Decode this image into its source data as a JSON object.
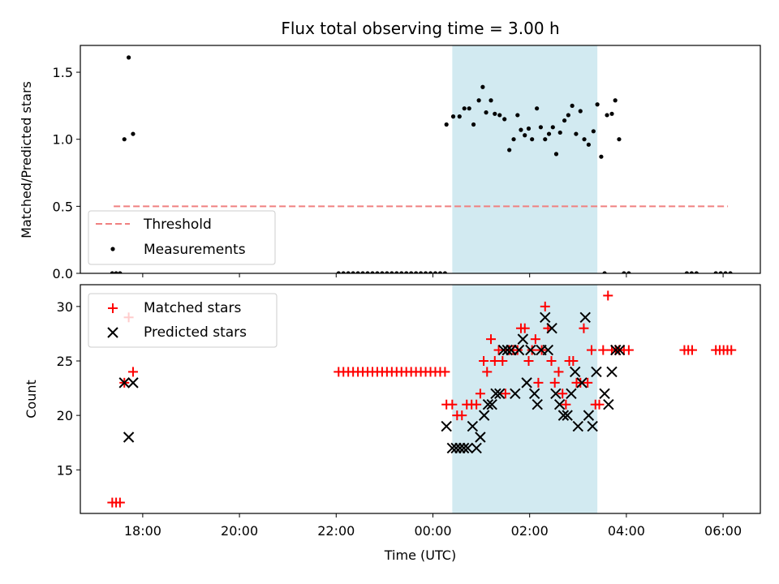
{
  "chart_data": {
    "title": "Flux total observing time = 3.00 h",
    "xlabel": "Time (UTC)",
    "x_ticks": [
      {
        "label": "18:00",
        "h": 18
      },
      {
        "label": "20:00",
        "h": 20
      },
      {
        "label": "22:00",
        "h": 22
      },
      {
        "label": "00:00",
        "h": 24
      },
      {
        "label": "02:00",
        "h": 26
      },
      {
        "label": "04:00",
        "h": 28
      },
      {
        "label": "06:00",
        "h": 30
      }
    ],
    "xlim_hours": [
      16.71,
      30.77
    ],
    "shaded_span_hours": [
      24.4,
      27.4
    ],
    "colors": {
      "shade": "#add8e6",
      "threshold": "#f08080",
      "matched": "#ff0000",
      "predicted": "#000000",
      "measure": "#000000"
    },
    "top": {
      "type": "scatter",
      "ylabel": "Matched/Predicted stars",
      "ylim": [
        0,
        1.7
      ],
      "yticks": [
        0.0,
        0.5,
        1.0,
        1.5
      ],
      "ytick_labels": [
        "0.0",
        "0.5",
        "1.0",
        "1.5"
      ],
      "threshold": {
        "value": 0.5,
        "x_range": [
          17.4,
          30.1
        ]
      },
      "legend": [
        "Threshold",
        "Measurements"
      ],
      "measurements": [
        [
          17.37,
          0
        ],
        [
          17.45,
          0
        ],
        [
          17.53,
          0
        ],
        [
          17.62,
          1.0
        ],
        [
          17.71,
          1.61
        ],
        [
          17.8,
          1.04
        ],
        [
          22.05,
          0
        ],
        [
          22.15,
          0
        ],
        [
          22.25,
          0
        ],
        [
          22.35,
          0
        ],
        [
          22.45,
          0
        ],
        [
          22.55,
          0
        ],
        [
          22.65,
          0
        ],
        [
          22.75,
          0
        ],
        [
          22.85,
          0
        ],
        [
          22.95,
          0
        ],
        [
          23.05,
          0
        ],
        [
          23.15,
          0
        ],
        [
          23.25,
          0
        ],
        [
          23.35,
          0
        ],
        [
          23.45,
          0
        ],
        [
          23.55,
          0
        ],
        [
          23.65,
          0
        ],
        [
          23.75,
          0
        ],
        [
          23.85,
          0
        ],
        [
          23.95,
          0
        ],
        [
          24.05,
          0
        ],
        [
          24.15,
          0
        ],
        [
          24.25,
          0
        ],
        [
          24.28,
          1.11
        ],
        [
          24.42,
          1.17
        ],
        [
          24.55,
          1.17
        ],
        [
          24.65,
          1.23
        ],
        [
          24.75,
          1.23
        ],
        [
          24.84,
          1.11
        ],
        [
          24.95,
          1.29
        ],
        [
          25.03,
          1.39
        ],
        [
          25.1,
          1.2
        ],
        [
          25.2,
          1.29
        ],
        [
          25.28,
          1.19
        ],
        [
          25.38,
          1.18
        ],
        [
          25.48,
          1.15
        ],
        [
          25.58,
          0.92
        ],
        [
          25.67,
          1.0
        ],
        [
          25.75,
          1.18
        ],
        [
          25.82,
          1.07
        ],
        [
          25.9,
          1.03
        ],
        [
          25.98,
          1.08
        ],
        [
          26.05,
          1.0
        ],
        [
          26.15,
          1.23
        ],
        [
          26.23,
          1.09
        ],
        [
          26.32,
          1.0
        ],
        [
          26.4,
          1.04
        ],
        [
          26.48,
          1.09
        ],
        [
          26.55,
          0.89
        ],
        [
          26.63,
          1.05
        ],
        [
          26.72,
          1.14
        ],
        [
          26.8,
          1.18
        ],
        [
          26.88,
          1.25
        ],
        [
          26.96,
          1.04
        ],
        [
          27.05,
          1.21
        ],
        [
          27.13,
          1.0
        ],
        [
          27.22,
          0.96
        ],
        [
          27.32,
          1.06
        ],
        [
          27.4,
          1.26
        ],
        [
          27.48,
          0.87
        ],
        [
          27.6,
          1.18
        ],
        [
          27.7,
          1.19
        ],
        [
          27.77,
          1.29
        ],
        [
          27.85,
          1.0
        ],
        [
          27.55,
          0
        ],
        [
          27.95,
          0
        ],
        [
          28.05,
          0
        ],
        [
          29.25,
          0
        ],
        [
          29.35,
          0
        ],
        [
          29.45,
          0
        ],
        [
          29.85,
          0
        ],
        [
          29.95,
          0
        ],
        [
          30.05,
          0
        ],
        [
          30.15,
          0
        ]
      ]
    },
    "bottom": {
      "type": "scatter",
      "ylabel": "Count",
      "ylim": [
        11.0,
        32.0
      ],
      "yticks": [
        15,
        20,
        25,
        30
      ],
      "ytick_labels": [
        "15",
        "20",
        "25",
        "30"
      ],
      "legend": [
        "Matched stars",
        "Predicted stars"
      ],
      "matched": [
        [
          17.37,
          12
        ],
        [
          17.45,
          12
        ],
        [
          17.53,
          12
        ],
        [
          17.62,
          23
        ],
        [
          17.71,
          29
        ],
        [
          17.8,
          24
        ],
        [
          22.05,
          24
        ],
        [
          22.15,
          24
        ],
        [
          22.25,
          24
        ],
        [
          22.35,
          24
        ],
        [
          22.45,
          24
        ],
        [
          22.55,
          24
        ],
        [
          22.65,
          24
        ],
        [
          22.75,
          24
        ],
        [
          22.85,
          24
        ],
        [
          22.95,
          24
        ],
        [
          23.05,
          24
        ],
        [
          23.15,
          24
        ],
        [
          23.25,
          24
        ],
        [
          23.35,
          24
        ],
        [
          23.45,
          24
        ],
        [
          23.55,
          24
        ],
        [
          23.65,
          24
        ],
        [
          23.75,
          24
        ],
        [
          23.85,
          24
        ],
        [
          23.95,
          24
        ],
        [
          24.05,
          24
        ],
        [
          24.15,
          24
        ],
        [
          24.25,
          24
        ],
        [
          24.28,
          21
        ],
        [
          24.4,
          21
        ],
        [
          24.5,
          20
        ],
        [
          24.6,
          20
        ],
        [
          24.7,
          21
        ],
        [
          24.8,
          21
        ],
        [
          24.9,
          21
        ],
        [
          24.98,
          22
        ],
        [
          25.05,
          25
        ],
        [
          25.12,
          24
        ],
        [
          25.2,
          27
        ],
        [
          25.28,
          25
        ],
        [
          25.36,
          26
        ],
        [
          25.44,
          25
        ],
        [
          25.5,
          22
        ],
        [
          25.58,
          26
        ],
        [
          25.66,
          26
        ],
        [
          25.75,
          26
        ],
        [
          25.82,
          28
        ],
        [
          25.9,
          28
        ],
        [
          25.98,
          25
        ],
        [
          26.05,
          26
        ],
        [
          26.12,
          27
        ],
        [
          26.18,
          23
        ],
        [
          26.25,
          26
        ],
        [
          26.32,
          30
        ],
        [
          26.38,
          28
        ],
        [
          26.45,
          25
        ],
        [
          26.52,
          23
        ],
        [
          26.6,
          24
        ],
        [
          26.68,
          22
        ],
        [
          26.75,
          21
        ],
        [
          26.82,
          25
        ],
        [
          26.9,
          25
        ],
        [
          26.97,
          23
        ],
        [
          27.05,
          23
        ],
        [
          27.12,
          28
        ],
        [
          27.2,
          23
        ],
        [
          27.28,
          26
        ],
        [
          27.36,
          21
        ],
        [
          27.44,
          21
        ],
        [
          27.52,
          26
        ],
        [
          27.62,
          31
        ],
        [
          27.7,
          26
        ],
        [
          27.78,
          26
        ],
        [
          27.85,
          26
        ],
        [
          27.95,
          26
        ],
        [
          28.05,
          26
        ],
        [
          29.2,
          26
        ],
        [
          29.28,
          26
        ],
        [
          29.36,
          26
        ],
        [
          29.85,
          26
        ],
        [
          29.93,
          26
        ],
        [
          30.01,
          26
        ],
        [
          30.09,
          26
        ],
        [
          30.17,
          26
        ]
      ],
      "predicted": [
        [
          17.62,
          23
        ],
        [
          17.71,
          18
        ],
        [
          17.8,
          23
        ],
        [
          24.28,
          19
        ],
        [
          24.4,
          17
        ],
        [
          24.48,
          17
        ],
        [
          24.56,
          17
        ],
        [
          24.64,
          17
        ],
        [
          24.72,
          17
        ],
        [
          24.82,
          19
        ],
        [
          24.9,
          17
        ],
        [
          24.98,
          18
        ],
        [
          25.06,
          20
        ],
        [
          25.14,
          21
        ],
        [
          25.22,
          21
        ],
        [
          25.3,
          22
        ],
        [
          25.38,
          22
        ],
        [
          25.46,
          26
        ],
        [
          25.54,
          26
        ],
        [
          25.62,
          26
        ],
        [
          25.7,
          22
        ],
        [
          25.78,
          26
        ],
        [
          25.86,
          27
        ],
        [
          25.94,
          23
        ],
        [
          26.02,
          26
        ],
        [
          26.1,
          22
        ],
        [
          26.16,
          21
        ],
        [
          26.24,
          26
        ],
        [
          26.32,
          29
        ],
        [
          26.38,
          26
        ],
        [
          26.46,
          28
        ],
        [
          26.54,
          22
        ],
        [
          26.62,
          21
        ],
        [
          26.7,
          20
        ],
        [
          26.78,
          20
        ],
        [
          26.86,
          22
        ],
        [
          26.94,
          24
        ],
        [
          27.0,
          19
        ],
        [
          27.08,
          23
        ],
        [
          27.15,
          29
        ],
        [
          27.22,
          20
        ],
        [
          27.3,
          19
        ],
        [
          27.38,
          24
        ],
        [
          27.55,
          22
        ],
        [
          27.63,
          21
        ],
        [
          27.7,
          24
        ],
        [
          27.78,
          26
        ],
        [
          27.86,
          26
        ]
      ]
    }
  }
}
